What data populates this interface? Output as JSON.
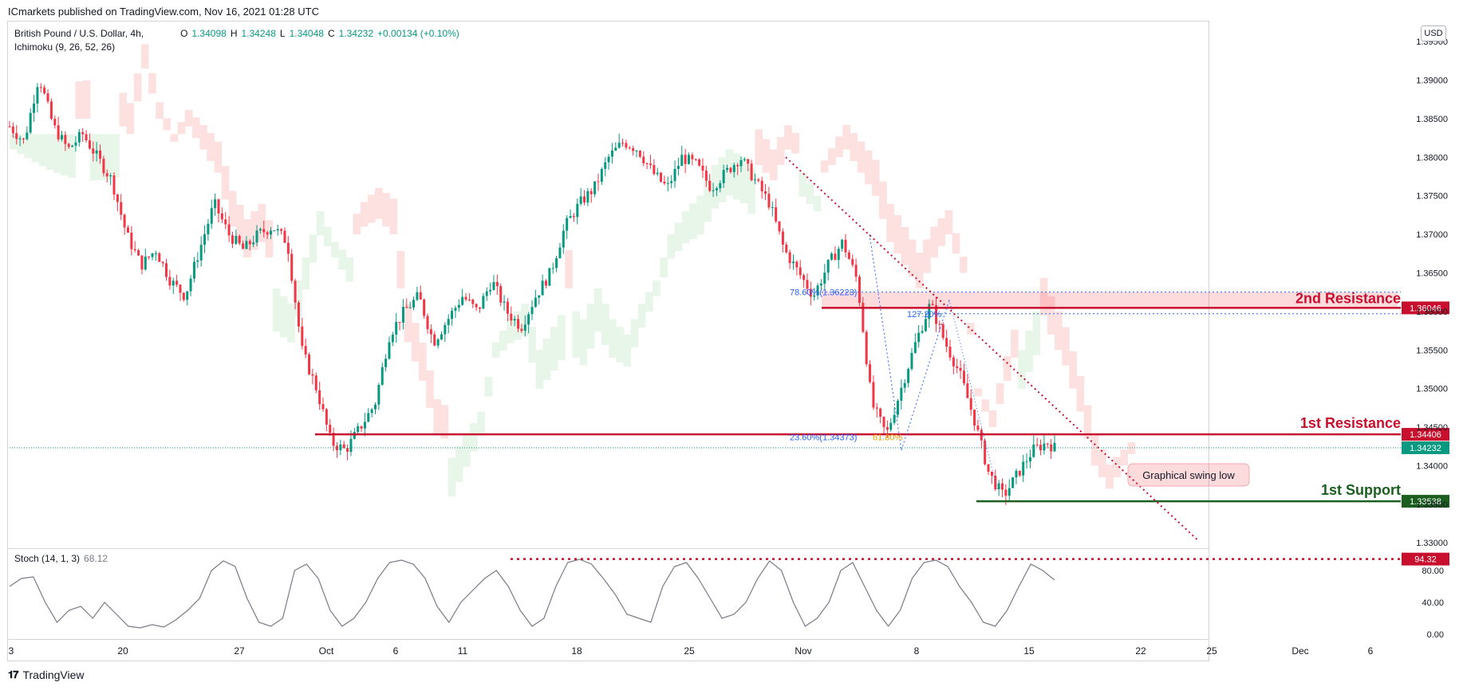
{
  "header": {
    "published": "ICmarkets published on TradingView.com, Nov 16, 2021 01:28 UTC"
  },
  "legend": {
    "symbol": "British Pound / U.S. Dollar, 4h,",
    "open_label": "O",
    "open": "1.34098",
    "high_label": "H",
    "high": "1.34248",
    "low_label": "L",
    "low": "1.34048",
    "close_label": "C",
    "close": "1.34232",
    "change": "+0.00134 (+0.10%)",
    "indicator": "Ichimoku (9, 26, 52, 26)"
  },
  "currency": "USD",
  "stoch": {
    "label": "Stoch (14, 1, 3)",
    "value": "68.12"
  },
  "footer": {
    "brand": "TradingView"
  },
  "colors": {
    "up": "#089981",
    "down": "#f23645",
    "resistance": "#c8102e",
    "support": "#1b5e20",
    "cloud_bull": "#e8f5e9",
    "cloud_bear": "#fde0e0"
  },
  "chart_data": {
    "type": "candlestick",
    "symbol": "GBPUSD",
    "timeframe": "4h",
    "price_ylim": [
      1.3295,
      1.3975
    ],
    "price_ticks": [
      "1.39500",
      "1.39000",
      "1.38500",
      "1.38000",
      "1.37500",
      "1.37000",
      "1.36500",
      "1.36000",
      "1.35500",
      "1.35000",
      "1.34500",
      "1.34000",
      "1.33500",
      "1.33000"
    ],
    "x_ticks": [
      "3",
      "20",
      "27",
      "Oct",
      "6",
      "11",
      "18",
      "25",
      "Nov",
      "8",
      "15",
      "22",
      "25",
      "Dec",
      "6"
    ],
    "price_path": [
      [
        0,
        1.384
      ],
      [
        2,
        1.382
      ],
      [
        4,
        1.3905
      ],
      [
        6,
        1.384
      ],
      [
        8,
        1.381
      ],
      [
        10,
        1.383
      ],
      [
        12,
        1.38
      ],
      [
        14,
        1.377
      ],
      [
        16,
        1.37
      ],
      [
        18,
        1.366
      ],
      [
        20,
        1.368
      ],
      [
        22,
        1.364
      ],
      [
        24,
        1.362
      ],
      [
        26,
        1.368
      ],
      [
        28,
        1.374
      ],
      [
        30,
        1.37
      ],
      [
        32,
        1.368
      ],
      [
        34,
        1.37
      ],
      [
        36,
        1.371
      ],
      [
        38,
        1.369
      ],
      [
        40,
        1.355
      ],
      [
        42,
        1.35
      ],
      [
        44,
        1.343
      ],
      [
        46,
        1.342
      ],
      [
        48,
        1.345
      ],
      [
        50,
        1.348
      ],
      [
        52,
        1.357
      ],
      [
        54,
        1.36
      ],
      [
        56,
        1.362
      ],
      [
        58,
        1.356
      ],
      [
        60,
        1.359
      ],
      [
        62,
        1.362
      ],
      [
        64,
        1.36
      ],
      [
        66,
        1.364
      ],
      [
        68,
        1.36
      ],
      [
        70,
        1.358
      ],
      [
        72,
        1.362
      ],
      [
        74,
        1.365
      ],
      [
        76,
        1.371
      ],
      [
        78,
        1.374
      ],
      [
        80,
        1.376
      ],
      [
        82,
        1.38
      ],
      [
        84,
        1.382
      ],
      [
        86,
        1.381
      ],
      [
        88,
        1.378
      ],
      [
        90,
        1.376
      ],
      [
        92,
        1.38
      ],
      [
        94,
        1.379
      ],
      [
        96,
        1.376
      ],
      [
        98,
        1.378
      ],
      [
        100,
        1.38
      ],
      [
        102,
        1.377
      ],
      [
        104,
        1.374
      ],
      [
        106,
        1.368
      ],
      [
        108,
        1.365
      ],
      [
        110,
        1.362
      ],
      [
        112,
        1.366
      ],
      [
        114,
        1.369
      ],
      [
        116,
        1.364
      ],
      [
        118,
        1.348
      ],
      [
        120,
        1.344
      ],
      [
        122,
        1.35
      ],
      [
        124,
        1.356
      ],
      [
        126,
        1.361
      ],
      [
        128,
        1.356
      ],
      [
        130,
        1.352
      ],
      [
        132,
        1.346
      ],
      [
        134,
        1.339
      ],
      [
        136,
        1.336
      ],
      [
        138,
        1.339
      ],
      [
        140,
        1.342
      ],
      [
        142,
        1.343
      ],
      [
        143,
        1.3423
      ]
    ],
    "levels": [
      {
        "label": "2nd Resistance",
        "price": "1.36046",
        "value": 1.36046
      },
      {
        "label": "1st Resistance",
        "price": "1.34406",
        "value": 1.34406
      },
      {
        "label": "1st Support",
        "price": "1.33538",
        "value": 1.33538
      }
    ],
    "current_price": "1.34232",
    "fib_labels": [
      "78.60%(1.36223)",
      "127.20%",
      "23.60%(1.34373)",
      "61.80%"
    ],
    "annotation": "Graphical swing low",
    "stoch": {
      "ylim": [
        0,
        100
      ],
      "ticks": [
        "80.00",
        "40.00",
        "0.00"
      ],
      "overbought_marker": "94.32",
      "series": [
        60,
        70,
        72,
        40,
        15,
        30,
        35,
        20,
        40,
        25,
        10,
        8,
        12,
        9,
        18,
        30,
        45,
        80,
        92,
        85,
        45,
        15,
        10,
        20,
        80,
        88,
        70,
        30,
        10,
        20,
        40,
        70,
        90,
        93,
        88,
        70,
        35,
        15,
        40,
        55,
        70,
        80,
        60,
        30,
        10,
        20,
        60,
        90,
        94,
        88,
        70,
        50,
        25,
        20,
        15,
        60,
        85,
        90,
        70,
        45,
        20,
        25,
        40,
        70,
        92,
        80,
        40,
        10,
        20,
        40,
        80,
        90,
        60,
        30,
        10,
        30,
        70,
        90,
        93,
        85,
        60,
        40,
        15,
        10,
        30,
        60,
        88,
        80,
        68
      ]
    }
  }
}
